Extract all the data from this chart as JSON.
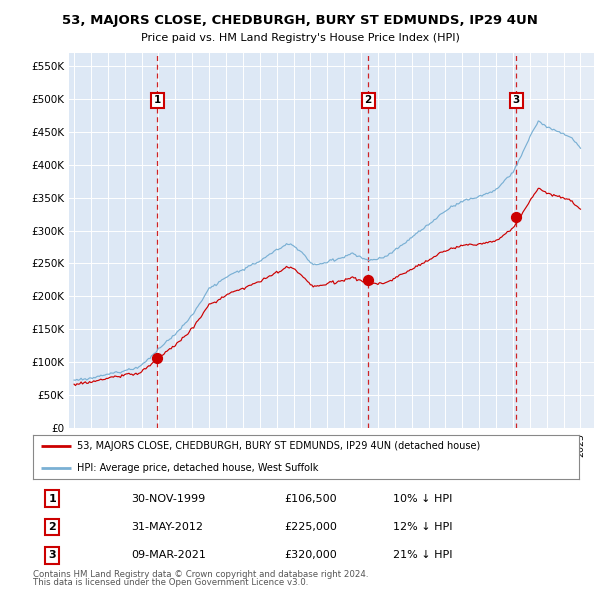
{
  "title": "53, MAJORS CLOSE, CHEDBURGH, BURY ST EDMUNDS, IP29 4UN",
  "subtitle": "Price paid vs. HM Land Registry's House Price Index (HPI)",
  "sale_times": [
    1999.917,
    2012.417,
    2021.19
  ],
  "sale_prices": [
    106500,
    225000,
    320000
  ],
  "sale_labels": [
    "1",
    "2",
    "3"
  ],
  "sale_info": [
    [
      "1",
      "30-NOV-1999",
      "£106,500",
      "10% ↓ HPI"
    ],
    [
      "2",
      "31-MAY-2012",
      "£225,000",
      "12% ↓ HPI"
    ],
    [
      "3",
      "09-MAR-2021",
      "£320,000",
      "21% ↓ HPI"
    ]
  ],
  "legend_line1": "53, MAJORS CLOSE, CHEDBURGH, BURY ST EDMUNDS, IP29 4UN (detached house)",
  "legend_line2": "HPI: Average price, detached house, West Suffolk",
  "footnote1": "Contains HM Land Registry data © Crown copyright and database right 2024.",
  "footnote2": "This data is licensed under the Open Government Licence v3.0.",
  "price_color": "#cc0000",
  "hpi_color": "#7ab0d4",
  "bg_color": "#dde8f5",
  "bg_color_right": "#eaf0f8",
  "ylim": [
    0,
    570000
  ],
  "yticks": [
    0,
    50000,
    100000,
    150000,
    200000,
    250000,
    300000,
    350000,
    400000,
    450000,
    500000,
    550000
  ],
  "xmin": 1994.7,
  "xmax": 2025.8
}
